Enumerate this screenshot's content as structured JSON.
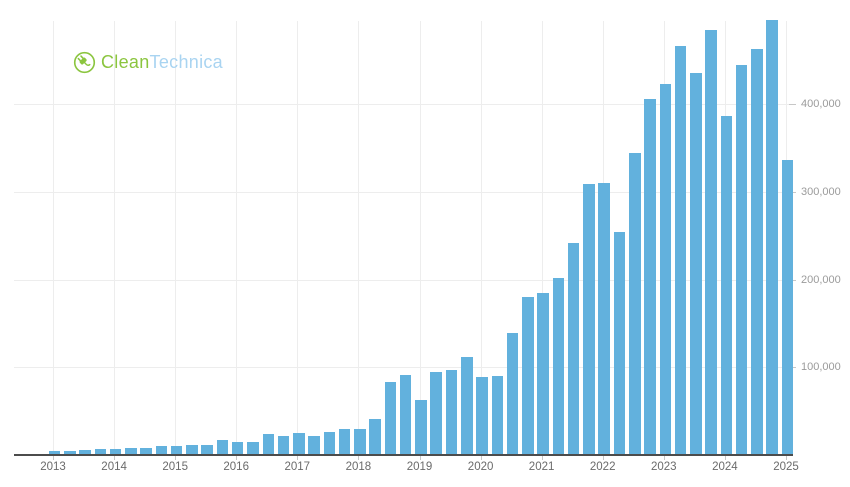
{
  "brand": {
    "name_part1": "Clean",
    "name_part2": "Technica",
    "color_green": "#8bc53f",
    "color_blue": "#a9d4f1"
  },
  "chart_data": {
    "type": "bar",
    "title": "",
    "x_unit": "quarter",
    "x": [
      "2013 Q1",
      "2013 Q2",
      "2013 Q3",
      "2013 Q4",
      "2014 Q1",
      "2014 Q2",
      "2014 Q3",
      "2014 Q4",
      "2015 Q1",
      "2015 Q2",
      "2015 Q3",
      "2015 Q4",
      "2016 Q1",
      "2016 Q2",
      "2016 Q3",
      "2016 Q4",
      "2017 Q1",
      "2017 Q2",
      "2017 Q3",
      "2017 Q4",
      "2018 Q1",
      "2018 Q2",
      "2018 Q3",
      "2018 Q4",
      "2019 Q1",
      "2019 Q2",
      "2019 Q3",
      "2019 Q4",
      "2020 Q1",
      "2020 Q2",
      "2020 Q3",
      "2020 Q4",
      "2021 Q1",
      "2021 Q2",
      "2021 Q3",
      "2021 Q4",
      "2022 Q1",
      "2022 Q2",
      "2022 Q3",
      "2022 Q4",
      "2023 Q1",
      "2023 Q2",
      "2023 Q3",
      "2023 Q4",
      "2024 Q1",
      "2024 Q2",
      "2024 Q3",
      "2024 Q4",
      "2025 Q1"
    ],
    "values": [
      4900,
      5150,
      5500,
      6892,
      6457,
      7579,
      7785,
      9834,
      10045,
      11532,
      11603,
      17478,
      14820,
      14402,
      24500,
      22200,
      25000,
      22000,
      26150,
      29870,
      29980,
      40740,
      83500,
      90700,
      63000,
      95200,
      97000,
      112000,
      88400,
      90650,
      139300,
      180570,
      184800,
      201250,
      241300,
      308600,
      310048,
      254695,
      343830,
      405278,
      422875,
      466140,
      435059,
      484507,
      386810,
      443956,
      462890,
      495570,
      336681
    ],
    "x_tick_labels": [
      "2013",
      "2014",
      "2015",
      "2016",
      "2017",
      "2018",
      "2019",
      "2020",
      "2021",
      "2022",
      "2023",
      "2024",
      "2025"
    ],
    "y_tick_values": [
      100000,
      200000,
      300000,
      400000
    ],
    "y_tick_labels": [
      "100,000",
      "200,000",
      "300,000",
      "400,000"
    ],
    "ylim": [
      0,
      500000
    ],
    "bar_color": "#62b1dd",
    "grid": true,
    "legend_position": "none",
    "y_axis_side": "right"
  }
}
